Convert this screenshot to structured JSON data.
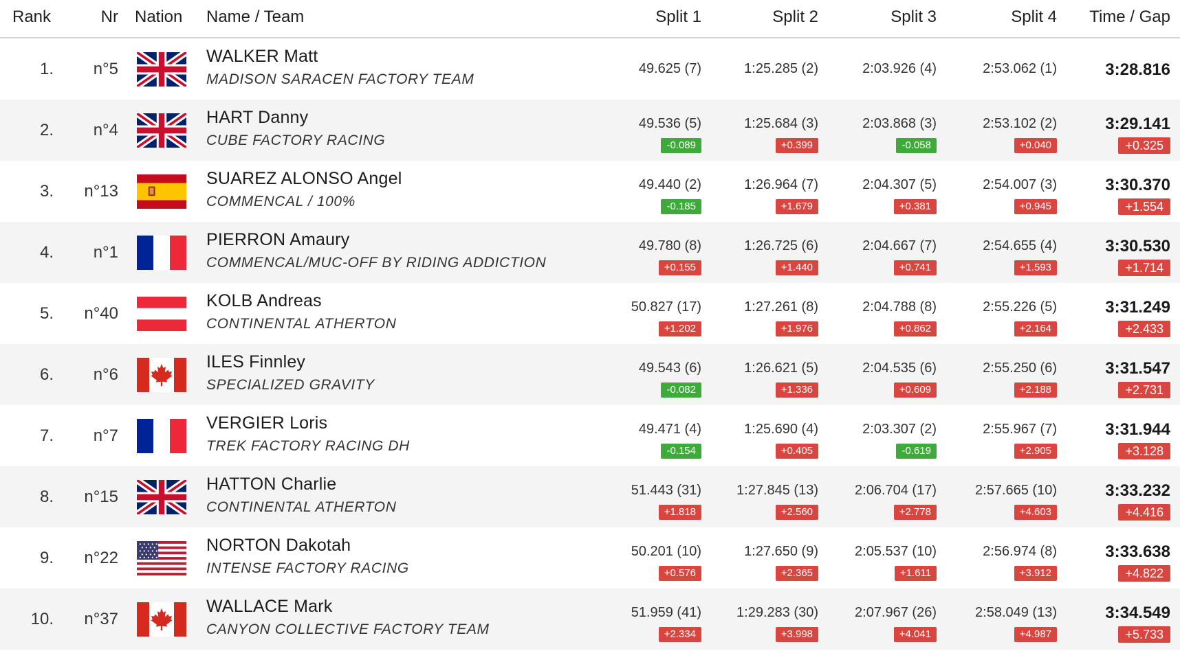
{
  "header": {
    "rank": "Rank",
    "nr": "Nr",
    "nation": "Nation",
    "name_team": "Name / Team",
    "split1": "Split 1",
    "split2": "Split 2",
    "split3": "Split 3",
    "split4": "Split 4",
    "time_gap": "Time / Gap"
  },
  "rows": [
    {
      "rank": "1.",
      "nr": "n°5",
      "flag": "gb",
      "name": "WALKER Matt",
      "team": "MADISON SARACEN FACTORY TEAM",
      "splits": [
        {
          "time": "49.625 (7)",
          "diff": null
        },
        {
          "time": "1:25.285 (2)",
          "diff": null
        },
        {
          "time": "2:03.926 (4)",
          "diff": null
        },
        {
          "time": "2:53.062 (1)",
          "diff": null
        }
      ],
      "time": "3:28.816",
      "gap": null
    },
    {
      "rank": "2.",
      "nr": "n°4",
      "flag": "gb",
      "name": "HART Danny",
      "team": "CUBE FACTORY RACING",
      "splits": [
        {
          "time": "49.536 (5)",
          "diff": "-0.089"
        },
        {
          "time": "1:25.684 (3)",
          "diff": "+0.399"
        },
        {
          "time": "2:03.868 (3)",
          "diff": "-0.058"
        },
        {
          "time": "2:53.102 (2)",
          "diff": "+0.040"
        }
      ],
      "time": "3:29.141",
      "gap": "+0.325"
    },
    {
      "rank": "3.",
      "nr": "n°13",
      "flag": "es",
      "name": "SUAREZ ALONSO Angel",
      "team": "COMMENCAL / 100%",
      "splits": [
        {
          "time": "49.440 (2)",
          "diff": "-0.185"
        },
        {
          "time": "1:26.964 (7)",
          "diff": "+1.679"
        },
        {
          "time": "2:04.307 (5)",
          "diff": "+0.381"
        },
        {
          "time": "2:54.007 (3)",
          "diff": "+0.945"
        }
      ],
      "time": "3:30.370",
      "gap": "+1.554"
    },
    {
      "rank": "4.",
      "nr": "n°1",
      "flag": "fr",
      "name": "PIERRON Amaury",
      "team": "COMMENCAL/MUC-OFF BY RIDING ADDICTION",
      "splits": [
        {
          "time": "49.780 (8)",
          "diff": "+0.155"
        },
        {
          "time": "1:26.725 (6)",
          "diff": "+1.440"
        },
        {
          "time": "2:04.667 (7)",
          "diff": "+0.741"
        },
        {
          "time": "2:54.655 (4)",
          "diff": "+1.593"
        }
      ],
      "time": "3:30.530",
      "gap": "+1.714"
    },
    {
      "rank": "5.",
      "nr": "n°40",
      "flag": "at",
      "name": "KOLB Andreas",
      "team": "CONTINENTAL ATHERTON",
      "splits": [
        {
          "time": "50.827 (17)",
          "diff": "+1.202"
        },
        {
          "time": "1:27.261 (8)",
          "diff": "+1.976"
        },
        {
          "time": "2:04.788 (8)",
          "diff": "+0.862"
        },
        {
          "time": "2:55.226 (5)",
          "diff": "+2.164"
        }
      ],
      "time": "3:31.249",
      "gap": "+2.433"
    },
    {
      "rank": "6.",
      "nr": "n°6",
      "flag": "ca",
      "name": "ILES Finnley",
      "team": "SPECIALIZED GRAVITY",
      "splits": [
        {
          "time": "49.543 (6)",
          "diff": "-0.082"
        },
        {
          "time": "1:26.621 (5)",
          "diff": "+1.336"
        },
        {
          "time": "2:04.535 (6)",
          "diff": "+0.609"
        },
        {
          "time": "2:55.250 (6)",
          "diff": "+2.188"
        }
      ],
      "time": "3:31.547",
      "gap": "+2.731"
    },
    {
      "rank": "7.",
      "nr": "n°7",
      "flag": "fr",
      "name": "VERGIER Loris",
      "team": "TREK FACTORY RACING DH",
      "splits": [
        {
          "time": "49.471 (4)",
          "diff": "-0.154"
        },
        {
          "time": "1:25.690 (4)",
          "diff": "+0.405"
        },
        {
          "time": "2:03.307 (2)",
          "diff": "-0.619"
        },
        {
          "time": "2:55.967 (7)",
          "diff": "+2.905"
        }
      ],
      "time": "3:31.944",
      "gap": "+3.128"
    },
    {
      "rank": "8.",
      "nr": "n°15",
      "flag": "gb",
      "name": "HATTON Charlie",
      "team": "CONTINENTAL ATHERTON",
      "splits": [
        {
          "time": "51.443 (31)",
          "diff": "+1.818"
        },
        {
          "time": "1:27.845 (13)",
          "diff": "+2.560"
        },
        {
          "time": "2:06.704 (17)",
          "diff": "+2.778"
        },
        {
          "time": "2:57.665 (10)",
          "diff": "+4.603"
        }
      ],
      "time": "3:33.232",
      "gap": "+4.416"
    },
    {
      "rank": "9.",
      "nr": "n°22",
      "flag": "us",
      "name": "NORTON Dakotah",
      "team": "INTENSE FACTORY RACING",
      "splits": [
        {
          "time": "50.201 (10)",
          "diff": "+0.576"
        },
        {
          "time": "1:27.650 (9)",
          "diff": "+2.365"
        },
        {
          "time": "2:05.537 (10)",
          "diff": "+1.611"
        },
        {
          "time": "2:56.974 (8)",
          "diff": "+3.912"
        }
      ],
      "time": "3:33.638",
      "gap": "+4.822"
    },
    {
      "rank": "10.",
      "nr": "n°37",
      "flag": "ca",
      "name": "WALLACE Mark",
      "team": "CANYON COLLECTIVE FACTORY TEAM",
      "splits": [
        {
          "time": "51.959 (41)",
          "diff": "+2.334"
        },
        {
          "time": "1:29.283 (30)",
          "diff": "+3.998"
        },
        {
          "time": "2:07.967 (26)",
          "diff": "+4.041"
        },
        {
          "time": "2:58.049 (13)",
          "diff": "+4.987"
        }
      ],
      "time": "3:34.549",
      "gap": "+5.733"
    }
  ]
}
